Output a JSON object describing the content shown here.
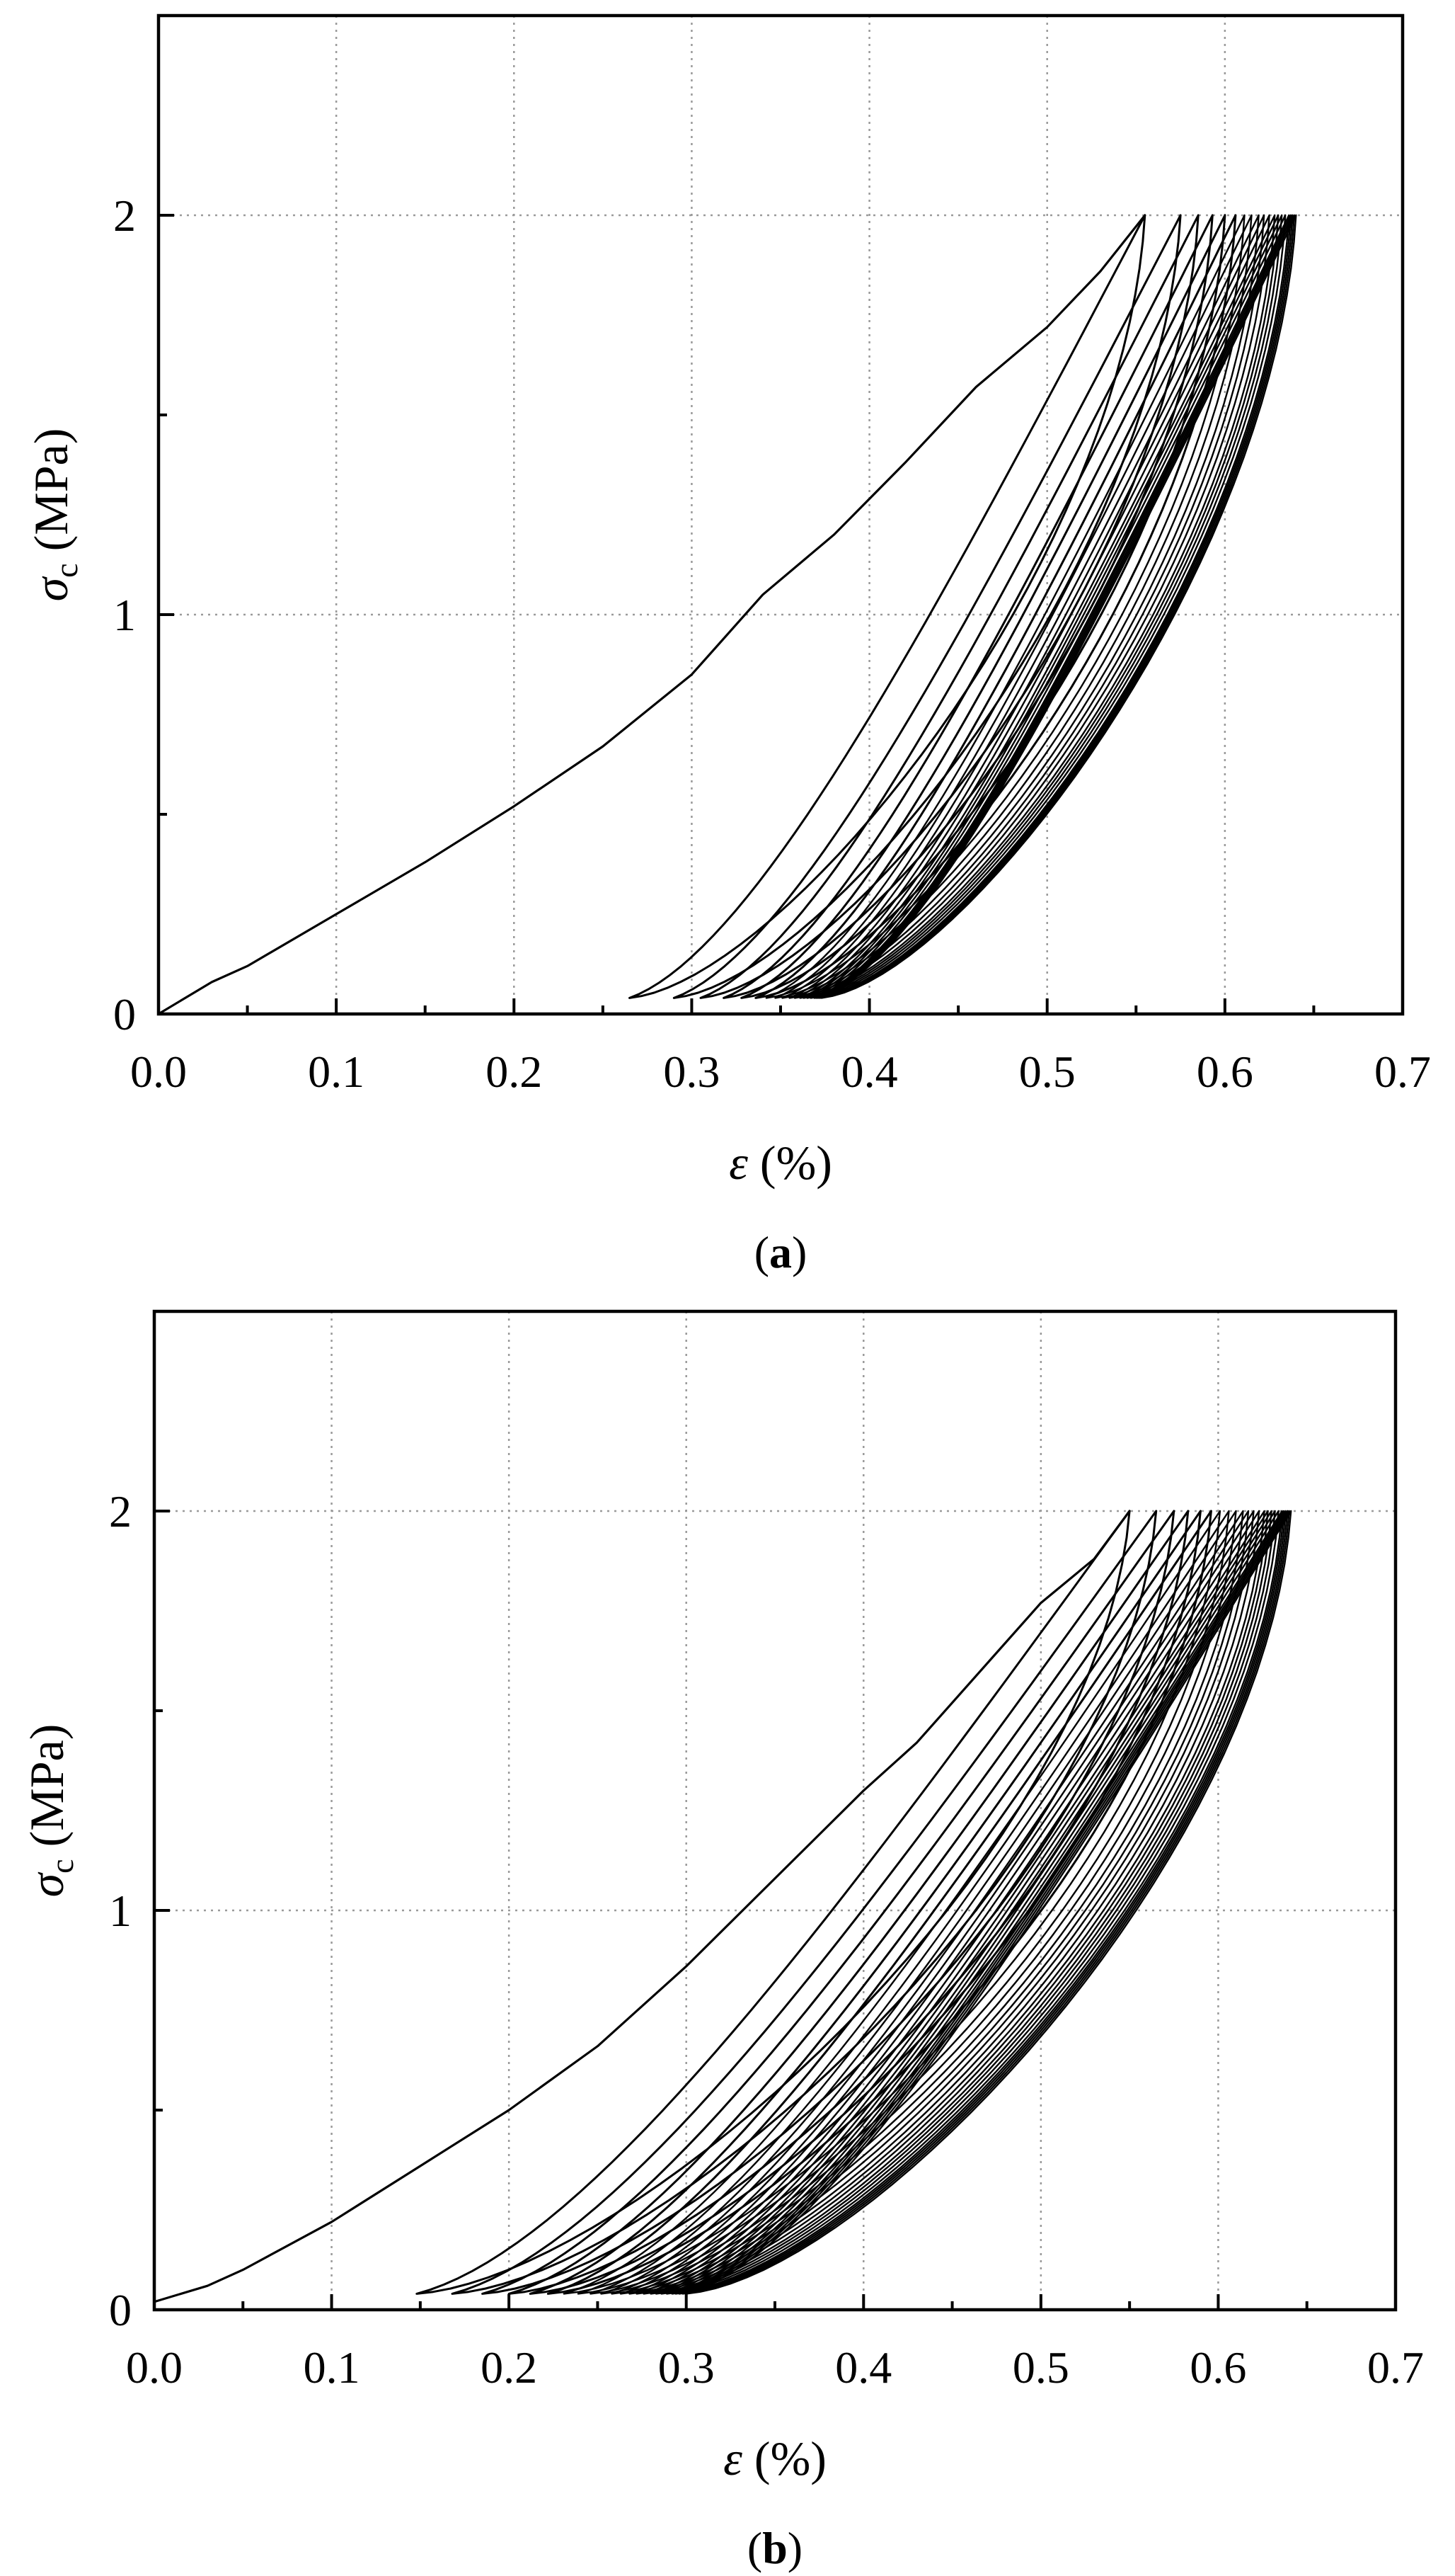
{
  "chart_data": [
    {
      "type": "line",
      "panel_label": "a",
      "xlabel_symbol": "ε",
      "xlabel_unit": " (%)",
      "ylabel_symbol": "σ",
      "ylabel_subscript": "c",
      "ylabel_unit": " (MPa)",
      "xlim": [
        0.0,
        0.7
      ],
      "ylim": [
        0,
        2.5
      ],
      "x_ticks": [
        "0.0",
        "0.1",
        "0.2",
        "0.3",
        "0.4",
        "0.5",
        "0.6",
        "0.7"
      ],
      "y_ticks": [
        "0",
        "1",
        "2"
      ],
      "grid": true,
      "series": [
        {
          "description_type": "cyclic-loading-loops",
          "initial_loading": [
            [
              0.0,
              0.0
            ],
            [
              0.03,
              0.08
            ],
            [
              0.05,
              0.12
            ],
            [
              0.1,
              0.25
            ],
            [
              0.15,
              0.38
            ],
            [
              0.2,
              0.52
            ],
            [
              0.25,
              0.67
            ],
            [
              0.3,
              0.85
            ],
            [
              0.34,
              1.05
            ],
            [
              0.38,
              1.2
            ],
            [
              0.42,
              1.38
            ],
            [
              0.46,
              1.57
            ],
            [
              0.5,
              1.72
            ],
            [
              0.53,
              1.86
            ],
            [
              0.555,
              2.0
            ]
          ],
          "loops": [
            {
              "peak_strain": 0.555,
              "valley_strain": 0.265
            },
            {
              "peak_strain": 0.575,
              "valley_strain": 0.29
            },
            {
              "peak_strain": 0.585,
              "valley_strain": 0.305
            },
            {
              "peak_strain": 0.593,
              "valley_strain": 0.318
            },
            {
              "peak_strain": 0.6,
              "valley_strain": 0.328
            },
            {
              "peak_strain": 0.606,
              "valley_strain": 0.336
            },
            {
              "peak_strain": 0.611,
              "valley_strain": 0.342
            },
            {
              "peak_strain": 0.615,
              "valley_strain": 0.347
            },
            {
              "peak_strain": 0.619,
              "valley_strain": 0.351
            },
            {
              "peak_strain": 0.622,
              "valley_strain": 0.355
            },
            {
              "peak_strain": 0.625,
              "valley_strain": 0.358
            },
            {
              "peak_strain": 0.628,
              "valley_strain": 0.361
            },
            {
              "peak_strain": 0.63,
              "valley_strain": 0.363
            },
            {
              "peak_strain": 0.632,
              "valley_strain": 0.365
            },
            {
              "peak_strain": 0.634,
              "valley_strain": 0.367
            },
            {
              "peak_strain": 0.636,
              "valley_strain": 0.369
            },
            {
              "peak_strain": 0.637,
              "valley_strain": 0.37
            },
            {
              "peak_strain": 0.638,
              "valley_strain": 0.371
            },
            {
              "peak_strain": 0.639,
              "valley_strain": 0.372
            },
            {
              "peak_strain": 0.64,
              "valley_strain": 0.373
            }
          ],
          "peak_stress": 2.0,
          "valley_stress": 0.04
        }
      ]
    },
    {
      "type": "line",
      "panel_label": "b",
      "xlabel_symbol": "ε",
      "xlabel_unit": " (%)",
      "ylabel_symbol": "σ",
      "ylabel_subscript": "c",
      "ylabel_unit": " (MPa)",
      "xlim": [
        0.0,
        0.7
      ],
      "ylim": [
        0,
        2.5
      ],
      "x_ticks": [
        "0.0",
        "0.1",
        "0.2",
        "0.3",
        "0.4",
        "0.5",
        "0.6",
        "0.7"
      ],
      "y_ticks": [
        "0",
        "1",
        "2"
      ],
      "grid": true,
      "series": [
        {
          "description_type": "cyclic-loading-loops",
          "initial_loading": [
            [
              0.0,
              0.02
            ],
            [
              0.03,
              0.06
            ],
            [
              0.05,
              0.1
            ],
            [
              0.1,
              0.22
            ],
            [
              0.15,
              0.36
            ],
            [
              0.2,
              0.5
            ],
            [
              0.25,
              0.66
            ],
            [
              0.3,
              0.86
            ],
            [
              0.35,
              1.08
            ],
            [
              0.4,
              1.3
            ],
            [
              0.43,
              1.42
            ],
            [
              0.47,
              1.62
            ],
            [
              0.5,
              1.77
            ],
            [
              0.53,
              1.88
            ],
            [
              0.55,
              2.0
            ]
          ],
          "loops": [
            {
              "peak_strain": 0.55,
              "valley_strain": 0.148
            },
            {
              "peak_strain": 0.565,
              "valley_strain": 0.168
            },
            {
              "peak_strain": 0.575,
              "valley_strain": 0.185
            },
            {
              "peak_strain": 0.583,
              "valley_strain": 0.2
            },
            {
              "peak_strain": 0.59,
              "valley_strain": 0.212
            },
            {
              "peak_strain": 0.596,
              "valley_strain": 0.222
            },
            {
              "peak_strain": 0.601,
              "valley_strain": 0.231
            },
            {
              "peak_strain": 0.606,
              "valley_strain": 0.239
            },
            {
              "peak_strain": 0.61,
              "valley_strain": 0.246
            },
            {
              "peak_strain": 0.614,
              "valley_strain": 0.252
            },
            {
              "peak_strain": 0.617,
              "valley_strain": 0.258
            },
            {
              "peak_strain": 0.62,
              "valley_strain": 0.263
            },
            {
              "peak_strain": 0.623,
              "valley_strain": 0.268
            },
            {
              "peak_strain": 0.626,
              "valley_strain": 0.272
            },
            {
              "peak_strain": 0.628,
              "valley_strain": 0.276
            },
            {
              "peak_strain": 0.63,
              "valley_strain": 0.28
            },
            {
              "peak_strain": 0.632,
              "valley_strain": 0.283
            },
            {
              "peak_strain": 0.634,
              "valley_strain": 0.286
            },
            {
              "peak_strain": 0.636,
              "valley_strain": 0.289
            },
            {
              "peak_strain": 0.637,
              "valley_strain": 0.292
            },
            {
              "peak_strain": 0.638,
              "valley_strain": 0.294
            },
            {
              "peak_strain": 0.639,
              "valley_strain": 0.296
            },
            {
              "peak_strain": 0.64,
              "valley_strain": 0.298
            },
            {
              "peak_strain": 0.641,
              "valley_strain": 0.3
            }
          ],
          "peak_stress": 2.0,
          "valley_stress": 0.04
        }
      ]
    }
  ]
}
